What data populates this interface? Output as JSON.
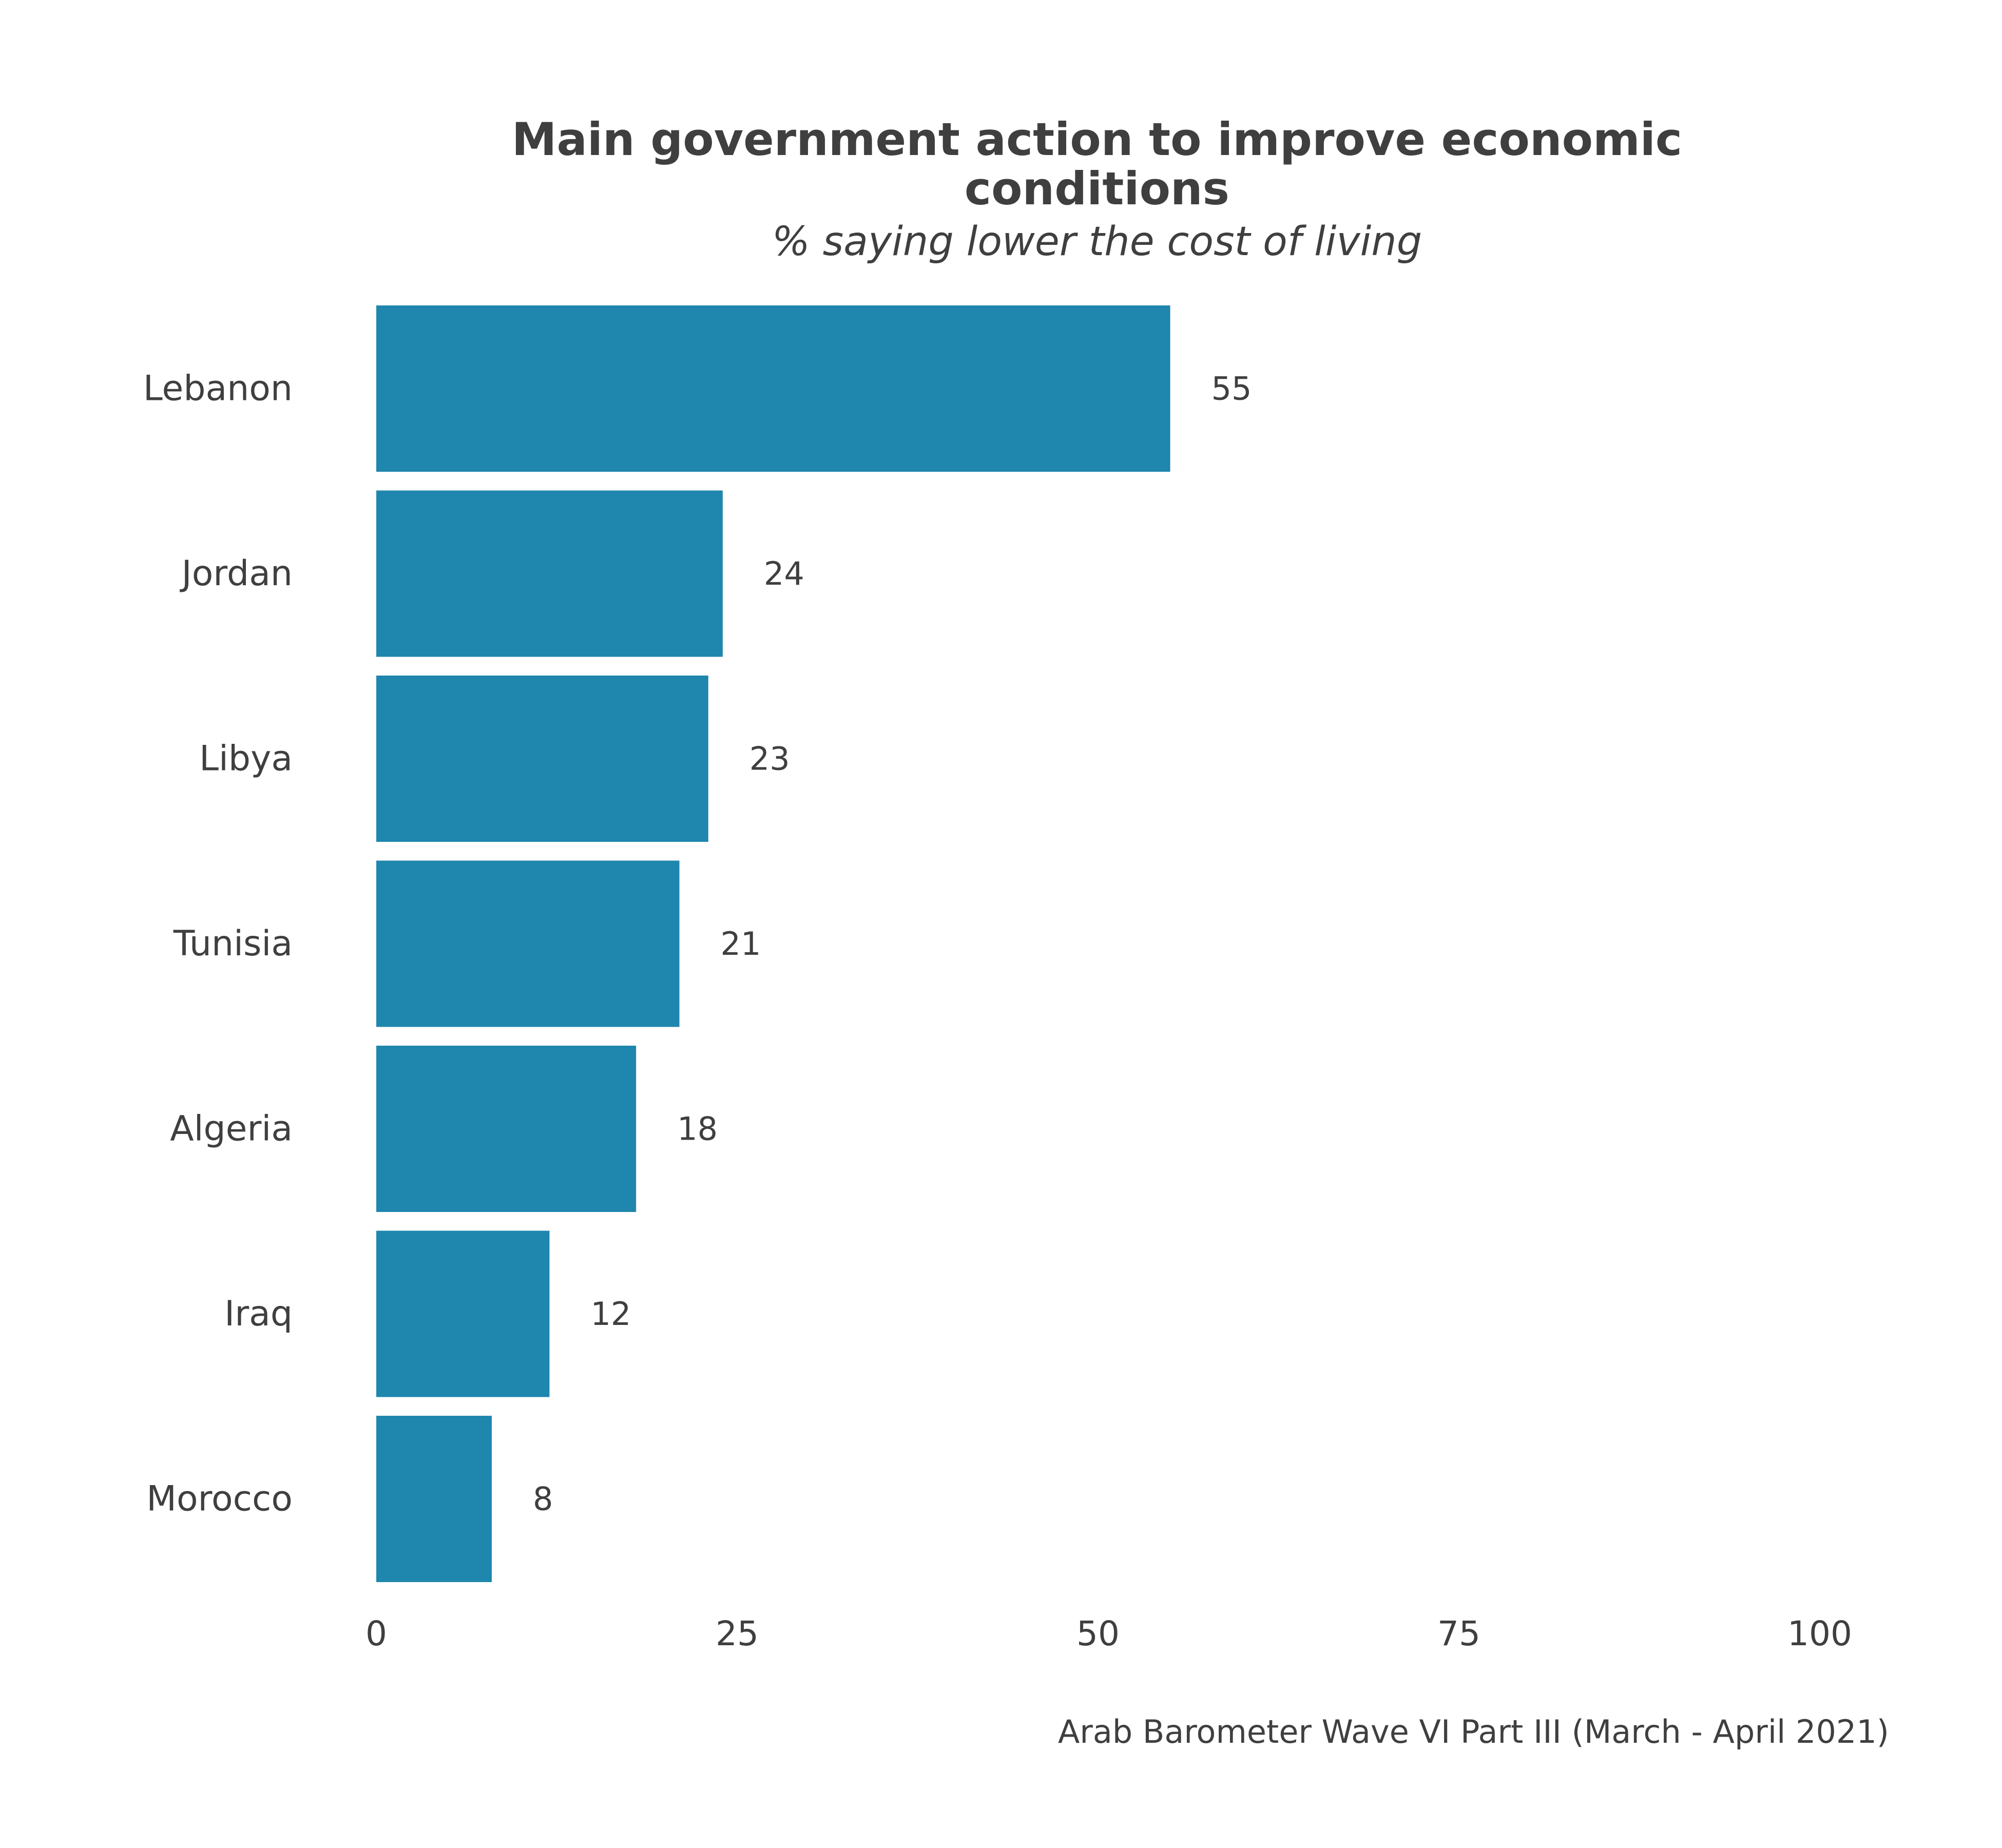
{
  "chart_data": {
    "type": "bar",
    "orientation": "horizontal",
    "title_lines": [
      "Main government action to improve economic",
      "conditions"
    ],
    "subtitle": "% saying lower the cost of living",
    "caption": "Arab Barometer Wave VI Part III (March - April 2021)",
    "categories": [
      "Lebanon",
      "Jordan",
      "Libya",
      "Tunisia",
      "Algeria",
      "Iraq",
      "Morocco"
    ],
    "values": [
      55,
      24,
      23,
      21,
      18,
      12,
      8
    ],
    "xlim": [
      0,
      100
    ],
    "x_ticks": [
      0,
      25,
      50,
      75,
      100
    ],
    "x_tick_labels": [
      "0",
      "25",
      "50",
      "75",
      "100"
    ],
    "bar_color": "#1f86ad",
    "grid": false,
    "legend": "none"
  }
}
